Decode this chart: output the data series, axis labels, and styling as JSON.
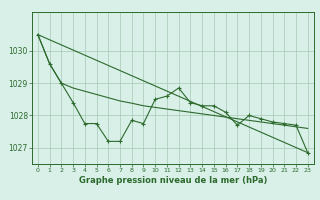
{
  "jagged": [
    1030.5,
    1029.6,
    1029.0,
    1028.4,
    1027.75,
    1027.75,
    1027.2,
    1027.2,
    1027.85,
    1027.75,
    1028.5,
    1028.6,
    1028.85,
    1028.4,
    1028.3,
    1028.3,
    1028.1,
    1027.7,
    1028.0,
    1027.9,
    1027.8,
    1027.75,
    1027.7,
    1026.85
  ],
  "upper_smooth": [
    1030.5,
    1029.6,
    1029.0,
    1028.85,
    1028.75,
    1028.65,
    1028.55,
    1028.45,
    1028.38,
    1028.3,
    1028.25,
    1028.2,
    1028.15,
    1028.1,
    1028.05,
    1028.0,
    1027.95,
    1027.9,
    1027.85,
    1027.8,
    1027.75,
    1027.7,
    1027.65,
    1027.6
  ],
  "trend_x": [
    0,
    23
  ],
  "trend_y": [
    1030.5,
    1026.85
  ],
  "line_color": "#2d6a2d",
  "bg_color": "#d8f0e8",
  "grid_color": "#a8c8b4",
  "xlabel": "Graphe pression niveau de la mer (hPa)",
  "ylim": [
    1026.5,
    1031.2
  ],
  "xlim": [
    -0.5,
    23.5
  ],
  "yticks": [
    1027,
    1028,
    1029,
    1030
  ],
  "xticks": [
    0,
    1,
    2,
    3,
    4,
    5,
    6,
    7,
    8,
    9,
    10,
    11,
    12,
    13,
    14,
    15,
    16,
    17,
    18,
    19,
    20,
    21,
    22,
    23
  ]
}
